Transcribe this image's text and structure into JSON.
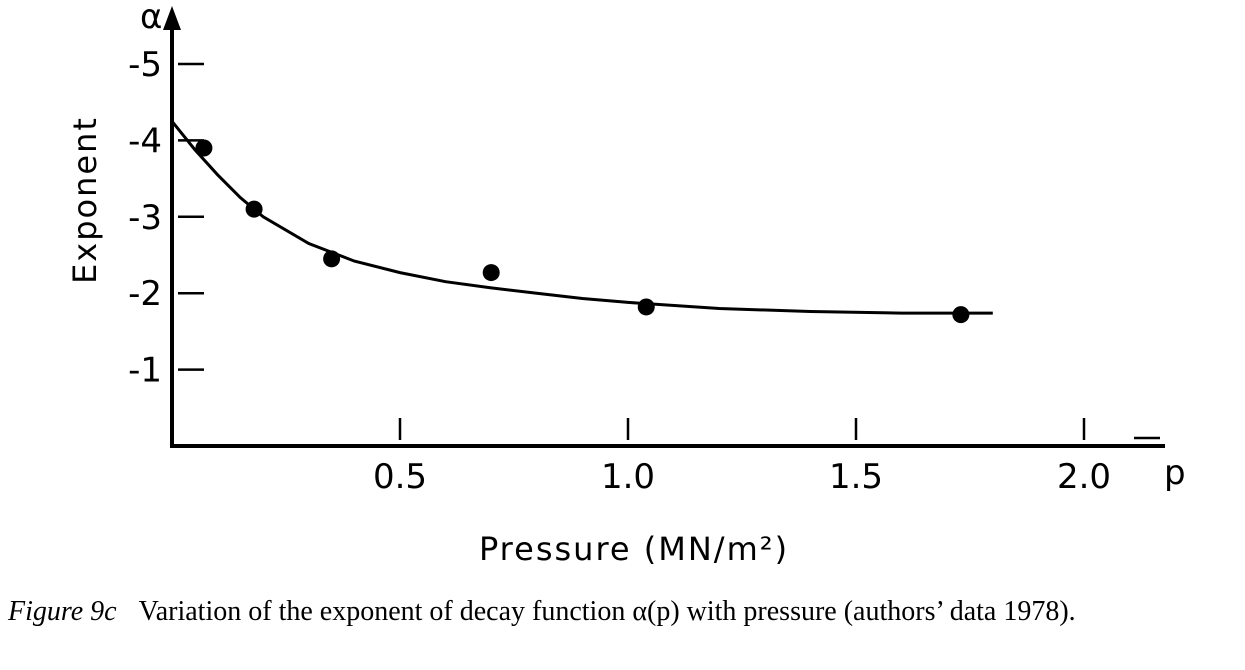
{
  "chart_data": {
    "type": "scatter",
    "title": "",
    "xlabel": "Pressure (MN/m²)",
    "ylabel": "Exponent",
    "x_axis_symbol": "p",
    "y_axis_symbol": "α",
    "xlim": [
      0,
      2.1
    ],
    "ylim": [
      0,
      5.5
    ],
    "x_ticks": [
      0.5,
      1.0,
      1.5,
      2.0
    ],
    "x_tick_labels": [
      "0.5",
      "1.0",
      "1.5",
      "2.0"
    ],
    "y_ticks": [
      1,
      2,
      3,
      4,
      5
    ],
    "y_tick_labels": [
      "-1",
      "-2",
      "-3",
      "-4",
      "-5"
    ],
    "series": [
      {
        "x": [
          0.07,
          0.18,
          0.35,
          0.7,
          1.04,
          1.73
        ],
        "y": [
          3.9,
          3.1,
          2.45,
          2.27,
          1.82,
          1.72
        ]
      }
    ],
    "fit_curve": {
      "x": [
        0,
        0.05,
        0.1,
        0.15,
        0.2,
        0.3,
        0.4,
        0.5,
        0.6,
        0.7,
        0.8,
        0.9,
        1.0,
        1.2,
        1.4,
        1.6,
        1.8
      ],
      "y": [
        4.25,
        3.88,
        3.55,
        3.25,
        3.0,
        2.65,
        2.42,
        2.27,
        2.15,
        2.07,
        2.0,
        1.93,
        1.88,
        1.8,
        1.76,
        1.74,
        1.74
      ]
    }
  },
  "caption": {
    "label": "Figure 9c",
    "text": "Variation of the exponent of decay function α(p) with pressure (authors’ data 1978)."
  }
}
